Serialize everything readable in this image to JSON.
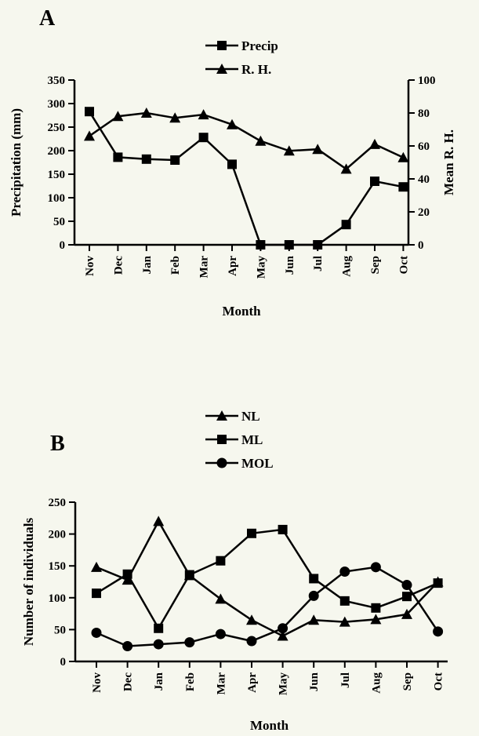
{
  "chart_data": [
    {
      "panel": "A",
      "type": "line",
      "categories": [
        "Nov",
        "Dec",
        "Jan",
        "Feb",
        "Mar",
        "Apr",
        "May",
        "Jun",
        "Jul",
        "Aug",
        "Sep",
        "Oct"
      ],
      "xlabel": "Month",
      "ylabel": "Precipitation (mm)",
      "y2label": "Mean R. H.",
      "ylim": [
        0,
        350
      ],
      "y2lim": [
        0,
        100
      ],
      "yticks": [
        "0",
        "50",
        "100",
        "150",
        "200",
        "250",
        "300",
        "350"
      ],
      "y2ticks": [
        "0",
        "20",
        "40",
        "60",
        "80",
        "100"
      ],
      "legend_position": "top-center",
      "grid": false,
      "series": [
        {
          "name": "Precip",
          "marker": "square",
          "axis": "left",
          "values": [
            283,
            186,
            182,
            180,
            228,
            171,
            0,
            0,
            0,
            43,
            135,
            123
          ]
        },
        {
          "name": "R. H.",
          "marker": "triangle",
          "axis": "right",
          "values": [
            66,
            78,
            80,
            77,
            79,
            73,
            63,
            57,
            58,
            46,
            61,
            53
          ]
        }
      ]
    },
    {
      "panel": "B",
      "type": "line",
      "categories": [
        "Nov",
        "Dec",
        "Jan",
        "Feb",
        "Mar",
        "Apr",
        "May",
        "Jun",
        "Jul",
        "Aug",
        "Sep",
        "Oct"
      ],
      "xlabel": "Month",
      "ylabel": "Number of individuals",
      "ylim": [
        0,
        250
      ],
      "yticks": [
        "0",
        "50",
        "100",
        "150",
        "200",
        "250"
      ],
      "legend_position": "top-center",
      "grid": false,
      "series": [
        {
          "name": "NL",
          "marker": "triangle",
          "values": [
            148,
            128,
            220,
            135,
            98,
            65,
            40,
            65,
            62,
            66,
            74,
            125
          ]
        },
        {
          "name": "ML",
          "marker": "square",
          "values": [
            107,
            137,
            52,
            136,
            158,
            201,
            207,
            130,
            95,
            84,
            102,
            123
          ]
        },
        {
          "name": "MOL",
          "marker": "circle",
          "values": [
            45,
            24,
            27,
            30,
            43,
            32,
            52,
            103,
            141,
            148,
            120,
            47
          ]
        }
      ]
    }
  ]
}
